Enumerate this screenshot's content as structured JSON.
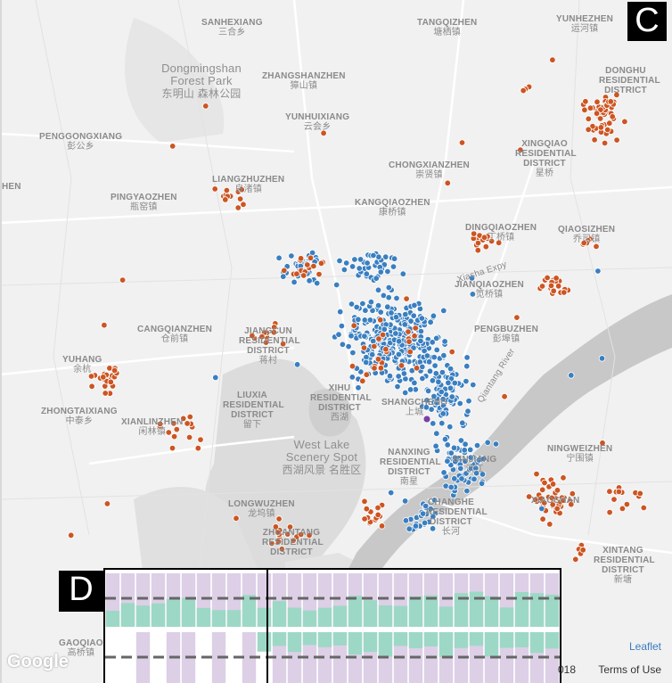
{
  "badges": {
    "panel_c": "C",
    "panel_d": "D"
  },
  "colors": {
    "orange": "#cc5522",
    "blue": "#3a7fc0",
    "purple": "#7a3ea8",
    "inset_purple": "#dccfe6",
    "inset_green": "#9dd8c6"
  },
  "labels": [
    {
      "id": "sanhexiang",
      "en": "SANHEXIANG",
      "zh": "三合乡"
    },
    {
      "id": "tangqizhen",
      "en": "TANGQIZHEN",
      "zh": "塘栖镇"
    },
    {
      "id": "yunhezhen",
      "en": "YUNHEZHEN",
      "zh": "运河镇"
    },
    {
      "id": "dongmingshan",
      "en": "Dongmingshan Forest Park",
      "zh": "东明山 森林公园"
    },
    {
      "id": "zhangshanzhen",
      "en": "ZHANGSHANZHEN",
      "zh": "獐山镇"
    },
    {
      "id": "donghu",
      "en": "DONGHU RESIDENTIAL DISTRICT",
      "zh": ""
    },
    {
      "id": "yunhuixiang",
      "en": "YUNHUIXIANG",
      "zh": "云会乡"
    },
    {
      "id": "penggongxiang",
      "en": "PENGGONGXIANG",
      "zh": "彭公乡"
    },
    {
      "id": "xingqiao",
      "en": "XINGQIAO RESIDENTIAL DISTRICT",
      "zh": "星桥"
    },
    {
      "id": "chongxianzhen",
      "en": "CHONGXIANZHEN",
      "zh": "崇贤镇"
    },
    {
      "id": "liangzhu",
      "en": "LIANGZHUZHEN",
      "zh": "良渚镇"
    },
    {
      "id": "hen",
      "en": "HEN",
      "zh": ""
    },
    {
      "id": "pingyaozhen",
      "en": "PINGYAOZHEN",
      "zh": "瓶窑镇"
    },
    {
      "id": "kangqiao",
      "en": "KANGQIAOZHEN",
      "zh": "康桥镇"
    },
    {
      "id": "dingqiao",
      "en": "DINGQIAOZHEN",
      "zh": "丁桥镇"
    },
    {
      "id": "qiaosi",
      "en": "QIAOSIZHEN",
      "zh": "乔司镇"
    },
    {
      "id": "jianqiao",
      "en": "JIANQIAOZHEN",
      "zh": "笕桥镇"
    },
    {
      "id": "cangqian",
      "en": "CANGQIANZHEN",
      "zh": "仓前镇"
    },
    {
      "id": "jiangcun",
      "en": "JIANGCUN RESIDENTIAL DISTRICT",
      "zh": "蒋村"
    },
    {
      "id": "pengbu",
      "en": "PENGBUZHEN",
      "zh": "彭埠镇"
    },
    {
      "id": "yuhang",
      "en": "YUHANG",
      "zh": "余杭"
    },
    {
      "id": "liuxia",
      "en": "LIUXIA RESIDENTIAL DISTRICT",
      "zh": "留下"
    },
    {
      "id": "xihu",
      "en": "XIHU RESIDENTIAL DISTRICT",
      "zh": "西湖"
    },
    {
      "id": "shangcheng",
      "en": "SHANGCHENG",
      "zh": "上城"
    },
    {
      "id": "zhongtai",
      "en": "ZHONGTAIXIANG",
      "zh": "中泰乡"
    },
    {
      "id": "xianlin",
      "en": "XIANLINZHEN",
      "zh": "闲林镇"
    },
    {
      "id": "westlake",
      "en": "West Lake Scenery Spot",
      "zh": "西湖风景 名胜区"
    },
    {
      "id": "nanxing",
      "en": "NANXING RESIDENTIAL DISTRICT",
      "zh": "南星"
    },
    {
      "id": "binjiang",
      "en": "BINJIANG",
      "zh": "滨江"
    },
    {
      "id": "ningwei",
      "en": "NINGWEIZHEN",
      "zh": "宁围镇"
    },
    {
      "id": "xiaoshan",
      "en": "XIAOSHAN",
      "zh": ""
    },
    {
      "id": "changhe",
      "en": "CHANGHE RESIDENTIAL DISTRICT",
      "zh": "长河"
    },
    {
      "id": "longwu",
      "en": "LONGWUZHEN",
      "zh": "龙坞镇"
    },
    {
      "id": "zhuantang",
      "en": "ZHUANTANG RESIDENTIAL DISTRICT",
      "zh": ""
    },
    {
      "id": "xintang",
      "en": "XINTANG RESIDENTIAL DISTRICT",
      "zh": "新塘"
    },
    {
      "id": "gaoqiao",
      "en": "GAOQIAO",
      "zh": "高桥镇"
    },
    {
      "id": "qiantang",
      "en": "Qiantang River",
      "zh": ""
    },
    {
      "id": "xiasha",
      "en": "Xiasha Expy",
      "zh": ""
    }
  ],
  "attribution": {
    "leaflet": "Leaflet",
    "terms": "Terms of Use",
    "year": "018",
    "google": "Google"
  }
}
